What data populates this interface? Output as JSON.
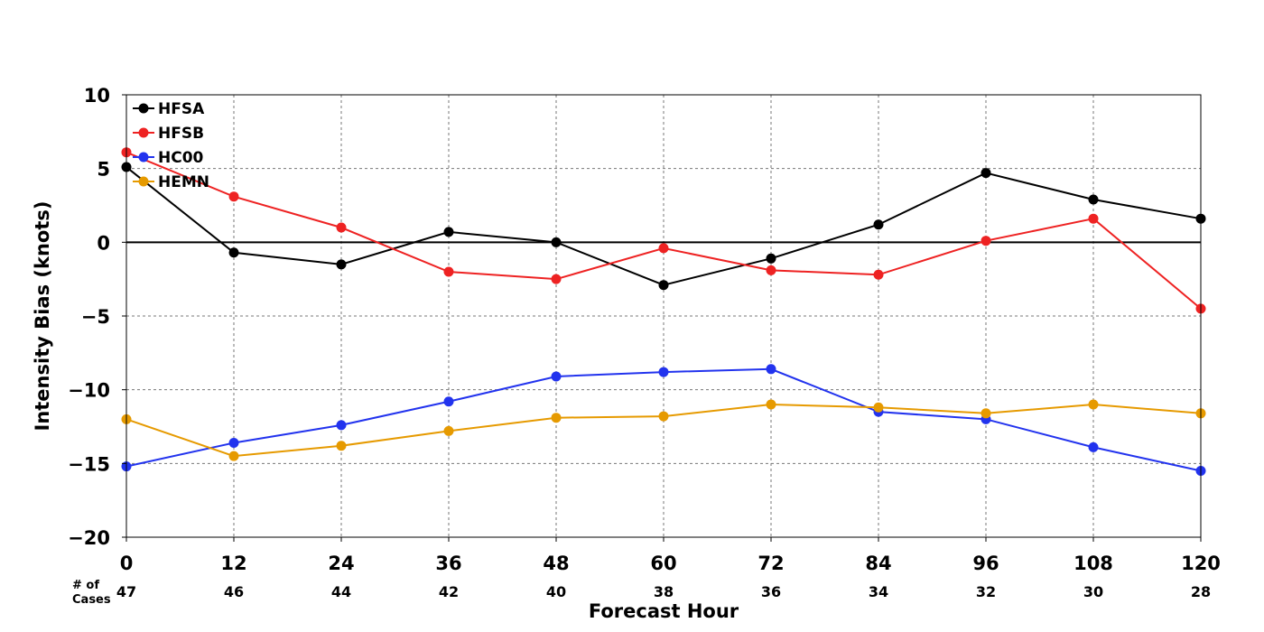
{
  "chart_data": {
    "type": "line",
    "xlabel": "Forecast Hour",
    "ylabel": "Intensity Bias (knots)",
    "xlim": [
      0,
      120
    ],
    "ylim": [
      -20,
      10
    ],
    "x": [
      0,
      12,
      24,
      36,
      48,
      60,
      72,
      84,
      96,
      108,
      120
    ],
    "x_tick_labels": [
      "0",
      "12",
      "24",
      "36",
      "48",
      "60",
      "72",
      "84",
      "96",
      "108",
      "120"
    ],
    "y_ticks": [
      10,
      5,
      0,
      -5,
      -10,
      -15,
      -20
    ],
    "y_tick_labels": [
      "10",
      "5",
      "0",
      "−5",
      "−10",
      "−15",
      "−20"
    ],
    "grid": true,
    "zero_line": true,
    "legend_position": "top-left",
    "cases_label": [
      "# of",
      "Cases"
    ],
    "cases": [
      "47",
      "46",
      "44",
      "42",
      "40",
      "38",
      "36",
      "34",
      "32",
      "30",
      "28"
    ],
    "series": [
      {
        "name": "HFSA",
        "color": "#000000",
        "values": [
          5.1,
          -0.7,
          -1.5,
          0.7,
          0.0,
          -2.9,
          -1.1,
          1.2,
          4.7,
          2.9,
          1.6
        ]
      },
      {
        "name": "HFSB",
        "color": "#ee2222",
        "values": [
          6.1,
          3.1,
          1.0,
          -2.0,
          -2.5,
          -0.4,
          -1.9,
          -2.2,
          0.1,
          1.6,
          -4.5
        ]
      },
      {
        "name": "HC00",
        "color": "#2233ee",
        "values": [
          -15.2,
          -13.6,
          -12.4,
          -10.8,
          -9.1,
          -8.8,
          -8.6,
          -11.5,
          -12.0,
          -13.9,
          -15.5
        ]
      },
      {
        "name": "HEMN",
        "color": "#e69a00",
        "values": [
          -12.0,
          -14.5,
          -13.8,
          -12.8,
          -11.9,
          -11.8,
          -11.0,
          -11.2,
          -11.6,
          -11.0,
          -11.6
        ]
      }
    ]
  }
}
